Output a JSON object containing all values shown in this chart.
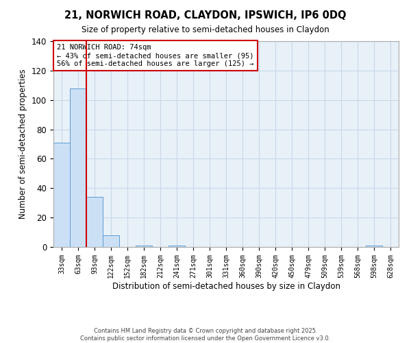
{
  "title_line1": "21, NORWICH ROAD, CLAYDON, IPSWICH, IP6 0DQ",
  "title_line2": "Size of property relative to semi-detached houses in Claydon",
  "xlabel": "Distribution of semi-detached houses by size in Claydon",
  "ylabel": "Number of semi-detached properties",
  "categories": [
    "33sqm",
    "63sqm",
    "93sqm",
    "122sqm",
    "152sqm",
    "182sqm",
    "212sqm",
    "241sqm",
    "271sqm",
    "301sqm",
    "331sqm",
    "360sqm",
    "390sqm",
    "420sqm",
    "450sqm",
    "479sqm",
    "509sqm",
    "539sqm",
    "568sqm",
    "598sqm",
    "628sqm"
  ],
  "values": [
    71,
    108,
    34,
    8,
    0,
    1,
    0,
    1,
    0,
    0,
    0,
    0,
    0,
    0,
    0,
    0,
    0,
    0,
    0,
    1,
    0
  ],
  "bar_color": "#cce0f5",
  "bar_edge_color": "#5b9bd5",
  "grid_color": "#c8d8e8",
  "vline_color": "#cc0000",
  "vline_x_index": 1.5,
  "annotation_title": "21 NORWICH ROAD: 74sqm",
  "annotation_line1": "← 43% of semi-detached houses are smaller (95)",
  "annotation_line2": "56% of semi-detached houses are larger (125) →",
  "annotation_box_color": "#ffffff",
  "annotation_box_edge": "#cc0000",
  "ylim": [
    0,
    140
  ],
  "yticks": [
    0,
    20,
    40,
    60,
    80,
    100,
    120,
    140
  ],
  "bg_color": "#e8f0f8",
  "footer_line1": "Contains HM Land Registry data © Crown copyright and database right 2025.",
  "footer_line2": "Contains public sector information licensed under the Open Government Licence v3.0."
}
